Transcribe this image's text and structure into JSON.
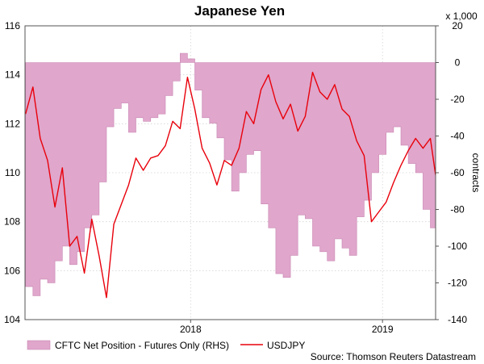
{
  "chart_data": {
    "type": "area",
    "title": "Japanese Yen",
    "source": "Source: Thomson Reuters Datastream",
    "grid": true,
    "legend_position": "bottom",
    "x_tick_labels": [
      "2018",
      "2019"
    ],
    "x_tick_dates": [
      "2018-01-01",
      "2019-01-01"
    ],
    "x_range": [
      "2017-02-20",
      "2019-04-12"
    ],
    "y_left": {
      "range": [
        104,
        116
      ],
      "ticks": [
        "104",
        "106",
        "108",
        "110",
        "112",
        "114",
        "116"
      ]
    },
    "y_right": {
      "range": [
        -140,
        20
      ],
      "ticks": [
        "-140",
        "-120",
        "-100",
        "-80",
        "-60",
        "-40",
        "-20",
        "0",
        "20"
      ],
      "multiplier_label": "x 1,000",
      "label": "contracts"
    },
    "colors": {
      "cftc": "#e0a6cb",
      "cftc_edge": "#c987b4",
      "usdjpy": "#e8000b"
    },
    "series": [
      {
        "name": "CFTC Net Position - Futures Only (RHS)",
        "axis": "right",
        "kind": "area",
        "x": [
          "2017-02-21",
          "2017-03-07",
          "2017-03-21",
          "2017-04-04",
          "2017-04-18",
          "2017-05-02",
          "2017-05-16",
          "2017-05-30",
          "2017-06-13",
          "2017-06-27",
          "2017-07-11",
          "2017-07-25",
          "2017-08-08",
          "2017-08-22",
          "2017-09-05",
          "2017-09-19",
          "2017-10-03",
          "2017-10-17",
          "2017-10-31",
          "2017-11-14",
          "2017-11-28",
          "2017-12-12",
          "2017-12-26",
          "2018-01-09",
          "2018-01-23",
          "2018-02-06",
          "2018-02-20",
          "2018-03-06",
          "2018-03-20",
          "2018-04-03",
          "2018-04-17",
          "2018-05-01",
          "2018-05-15",
          "2018-05-29",
          "2018-06-12",
          "2018-06-26",
          "2018-07-10",
          "2018-07-24",
          "2018-08-07",
          "2018-08-21",
          "2018-09-04",
          "2018-09-18",
          "2018-10-02",
          "2018-10-16",
          "2018-10-30",
          "2018-11-13",
          "2018-11-27",
          "2018-12-11",
          "2018-12-25",
          "2019-01-08",
          "2019-01-22",
          "2019-02-05",
          "2019-02-19",
          "2019-03-05",
          "2019-03-19",
          "2019-04-02",
          "2019-04-12"
        ],
        "y": [
          -122,
          -127,
          -118,
          -120,
          -108,
          -100,
          -110,
          -103,
          -90,
          -83,
          -65,
          -35,
          -25,
          -22,
          -38,
          -30,
          -32,
          -30,
          -28,
          -18,
          -10,
          5,
          2,
          -15,
          -30,
          -33,
          -41,
          -53,
          -70,
          -60,
          -50,
          -48,
          -77,
          -90,
          -115,
          -117,
          -105,
          -83,
          -85,
          -100,
          -103,
          -108,
          -96,
          -101,
          -105,
          -84,
          -75,
          -60,
          -50,
          -38,
          -35,
          -45,
          -55,
          -60,
          -80,
          -90,
          -56
        ]
      },
      {
        "name": "USDJPY",
        "axis": "left",
        "kind": "line",
        "x": [
          "2017-02-21",
          "2017-03-07",
          "2017-03-21",
          "2017-04-04",
          "2017-04-18",
          "2017-05-02",
          "2017-05-16",
          "2017-05-30",
          "2017-06-13",
          "2017-06-27",
          "2017-07-11",
          "2017-07-25",
          "2017-08-08",
          "2017-08-22",
          "2017-09-05",
          "2017-09-19",
          "2017-10-03",
          "2017-10-17",
          "2017-10-31",
          "2017-11-14",
          "2017-11-28",
          "2017-12-12",
          "2017-12-26",
          "2018-01-09",
          "2018-01-23",
          "2018-02-06",
          "2018-02-20",
          "2018-03-06",
          "2018-03-20",
          "2018-04-03",
          "2018-04-17",
          "2018-05-01",
          "2018-05-15",
          "2018-05-29",
          "2018-06-12",
          "2018-06-26",
          "2018-07-10",
          "2018-07-24",
          "2018-08-07",
          "2018-08-21",
          "2018-09-04",
          "2018-09-18",
          "2018-10-02",
          "2018-10-16",
          "2018-10-30",
          "2018-11-13",
          "2018-11-27",
          "2018-12-11",
          "2018-12-25",
          "2019-01-08",
          "2019-01-22",
          "2019-02-05",
          "2019-02-19",
          "2019-03-05",
          "2019-03-19",
          "2019-04-02",
          "2019-04-12"
        ],
        "y": [
          112.4,
          113.5,
          111.4,
          110.5,
          108.6,
          110.2,
          107.0,
          107.4,
          105.9,
          108.1,
          106.6,
          104.9,
          107.9,
          108.7,
          109.5,
          110.6,
          110.1,
          110.6,
          110.7,
          111.1,
          112.1,
          111.8,
          113.9,
          112.6,
          111.0,
          110.4,
          109.5,
          110.5,
          110.3,
          111.0,
          112.5,
          112.0,
          113.4,
          114.0,
          112.9,
          112.2,
          112.8,
          111.7,
          112.3,
          114.1,
          113.3,
          113.0,
          113.6,
          112.6,
          112.3,
          111.3,
          110.7,
          108.0,
          108.4,
          108.8,
          109.6,
          110.3,
          110.9,
          111.4,
          111.0,
          111.4,
          109.9
        ]
      }
    ]
  }
}
